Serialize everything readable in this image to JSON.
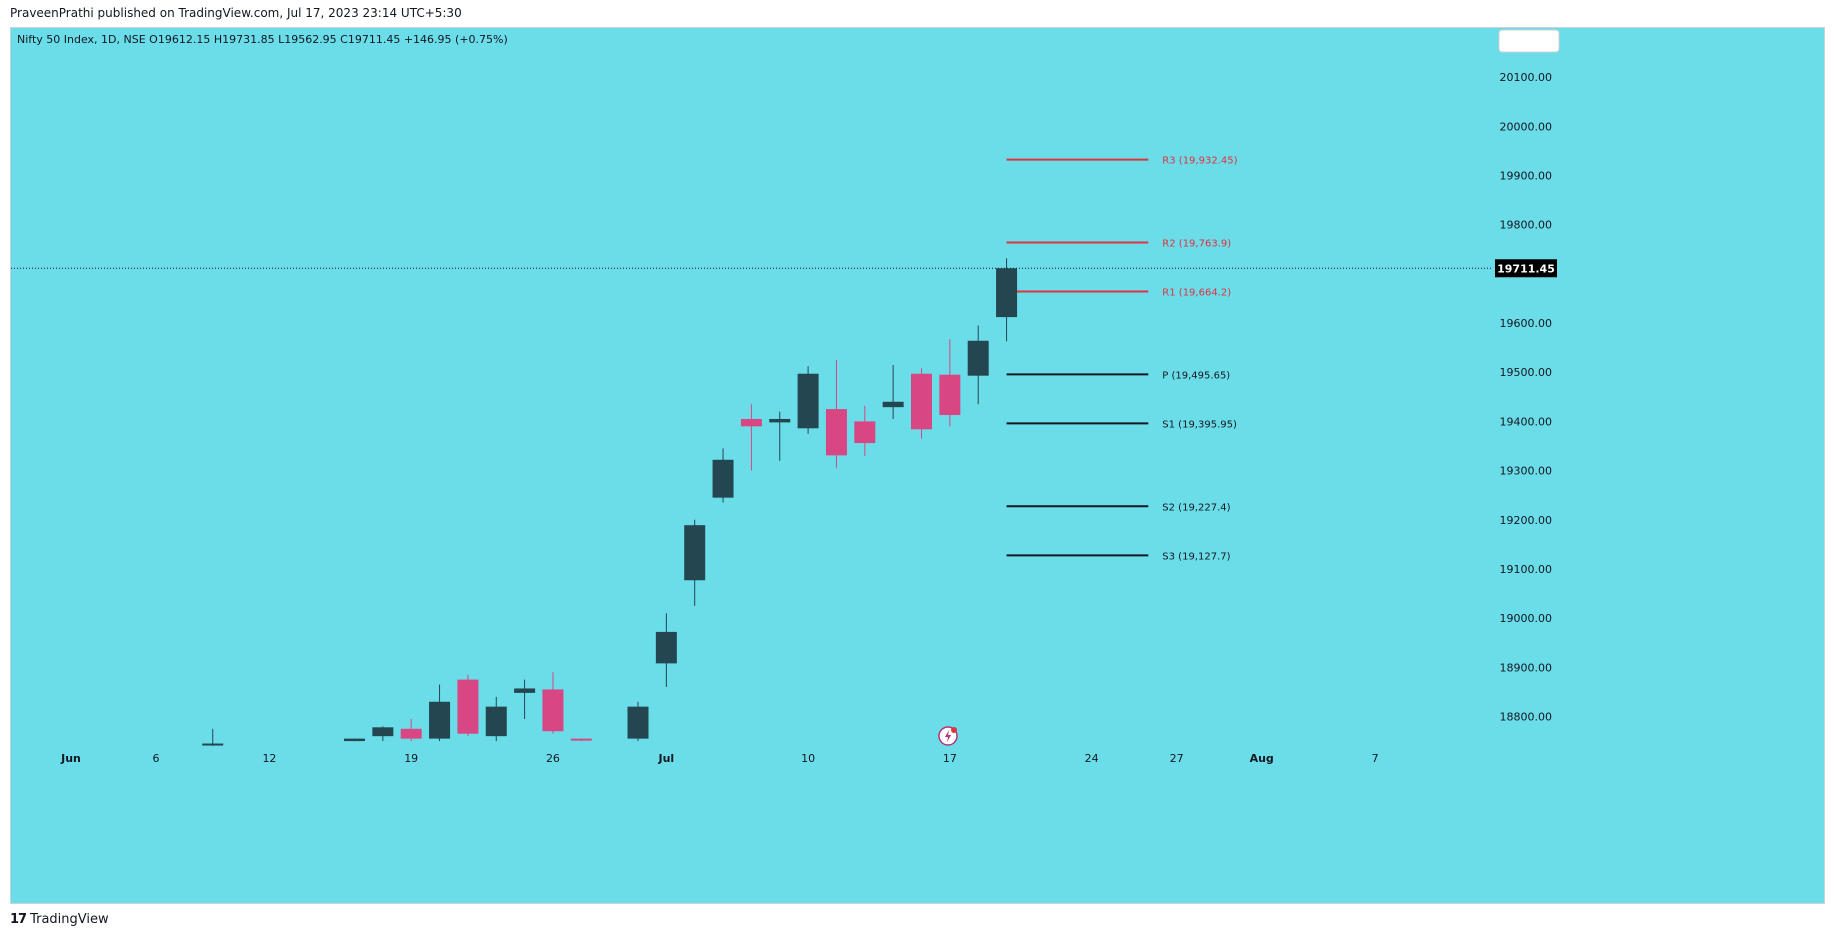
{
  "header": {
    "published": "PraveenPrathi published on TradingView.com, Jul 17, 2023 23:14 UTC+5:30",
    "legend": "Nifty 50 Index, 1D, NSE  O19612.15  H19731.85  L19562.95  C19711.45  +146.95 (+0.75%)"
  },
  "footer": {
    "brand": "TradingView",
    "logo": "𝟭𝟳"
  },
  "colors": {
    "background": "#6bdde9",
    "up": "#234650",
    "down": "#d94684",
    "resistance": "#e0313f",
    "support": "#131722",
    "last_price_bg": "#000000"
  },
  "chart_data": {
    "type": "candlestick",
    "title": "Nifty 50 Index, 1D, NSE",
    "last_price": 19711.45,
    "last_price_label": "19711.45",
    "ylim": [
      18740,
      20200
    ],
    "y_ticks": [
      {
        "value": 20100,
        "label": "20100.00"
      },
      {
        "value": 20000,
        "label": "20000.00"
      },
      {
        "value": 19900,
        "label": "19900.00"
      },
      {
        "value": 19800,
        "label": "19800.00"
      },
      {
        "value": 19600,
        "label": "19600.00"
      },
      {
        "value": 19500,
        "label": "19500.00"
      },
      {
        "value": 19400,
        "label": "19400.00"
      },
      {
        "value": 19300,
        "label": "19300.00"
      },
      {
        "value": 19200,
        "label": "19200.00"
      },
      {
        "value": 19100,
        "label": "19100.00"
      },
      {
        "value": 19000,
        "label": "19000.00"
      },
      {
        "value": 18900,
        "label": "18900.00"
      },
      {
        "value": 18800,
        "label": "18800.00"
      }
    ],
    "x_ticks": [
      {
        "label": "Jun",
        "index": 0
      },
      {
        "label": "6",
        "index": 3
      },
      {
        "label": "12",
        "index": 7
      },
      {
        "label": "19",
        "index": 12
      },
      {
        "label": "26",
        "index": 17
      },
      {
        "label": "Jul",
        "index": 21
      },
      {
        "label": "10",
        "index": 26
      },
      {
        "label": "17",
        "index": 31
      },
      {
        "label": "24",
        "index": 36
      },
      {
        "label": "27",
        "index": 39
      },
      {
        "label": "Aug",
        "index": 42
      },
      {
        "label": "7",
        "index": 46
      }
    ],
    "candles": [
      {
        "index": 5,
        "open": 18745,
        "high": 18775,
        "low": 18740,
        "close": 18745
      },
      {
        "index": 10,
        "open": 18750,
        "high": 18755,
        "low": 18750,
        "close": 18755
      },
      {
        "index": 11,
        "open": 18760,
        "high": 18780,
        "low": 18750,
        "close": 18778
      },
      {
        "index": 12,
        "open": 18775,
        "high": 18795,
        "low": 18750,
        "close": 18755
      },
      {
        "index": 13,
        "open": 18755,
        "high": 18865,
        "low": 18750,
        "close": 18830
      },
      {
        "index": 14,
        "open": 18875,
        "high": 18885,
        "low": 18760,
        "close": 18765
      },
      {
        "index": 15,
        "open": 18760,
        "high": 18840,
        "low": 18750,
        "close": 18820
      },
      {
        "index": 16,
        "open": 18848,
        "high": 18875,
        "low": 18795,
        "close": 18857
      },
      {
        "index": 17,
        "open": 18855,
        "high": 18890,
        "low": 18765,
        "close": 18770
      },
      {
        "index": 18,
        "open": 18755,
        "high": 18755,
        "low": 18750,
        "close": 18752
      },
      {
        "index": 20,
        "open": 18755,
        "high": 18830,
        "low": 18750,
        "close": 18820
      },
      {
        "index": 21,
        "open": 18908,
        "high": 19010,
        "low": 18860,
        "close": 18972
      },
      {
        "index": 22,
        "open": 19077,
        "high": 19200,
        "low": 19025,
        "close": 19189
      },
      {
        "index": 23,
        "open": 19245,
        "high": 19345,
        "low": 19235,
        "close": 19322
      },
      {
        "index": 24,
        "open": 19405,
        "high": 19435,
        "low": 19300,
        "close": 19390
      },
      {
        "index": 25,
        "open": 19398,
        "high": 19420,
        "low": 19320,
        "close": 19405
      },
      {
        "index": 26,
        "open": 19386,
        "high": 19512,
        "low": 19375,
        "close": 19497
      },
      {
        "index": 27,
        "open": 19425,
        "high": 19525,
        "low": 19305,
        "close": 19331
      },
      {
        "index": 28,
        "open": 19400,
        "high": 19432,
        "low": 19330,
        "close": 19356
      },
      {
        "index": 29,
        "open": 19429,
        "high": 19515,
        "low": 19405,
        "close": 19440
      },
      {
        "index": 30,
        "open": 19497,
        "high": 19508,
        "low": 19365,
        "close": 19384
      },
      {
        "index": 31,
        "open": 19495,
        "high": 19567,
        "low": 19390,
        "close": 19413
      },
      {
        "index": 32,
        "open": 19493,
        "high": 19595,
        "low": 19435,
        "close": 19564
      },
      {
        "index": 33,
        "open": 19612.15,
        "high": 19731.85,
        "low": 19562.95,
        "close": 19711.45
      }
    ],
    "pivot_levels": [
      {
        "name": "R3",
        "value": 19932.45,
        "label": "R3 (19,932.45)",
        "kind": "resistance"
      },
      {
        "name": "R2",
        "value": 19763.9,
        "label": "R2 (19,763.9)",
        "kind": "resistance"
      },
      {
        "name": "R1",
        "value": 19664.2,
        "label": "R1 (19,664.2)",
        "kind": "resistance"
      },
      {
        "name": "P",
        "value": 19495.65,
        "label": "P (19,495.65)",
        "kind": "support"
      },
      {
        "name": "S1",
        "value": 19395.95,
        "label": "S1 (19,395.95)",
        "kind": "support"
      },
      {
        "name": "S2",
        "value": 19227.4,
        "label": "S2 (19,227.4)",
        "kind": "support"
      },
      {
        "name": "S3",
        "value": 19127.7,
        "label": "S3 (19,127.7)",
        "kind": "support"
      }
    ],
    "pivot_range": {
      "from_index": 33,
      "to_index": 38
    }
  }
}
